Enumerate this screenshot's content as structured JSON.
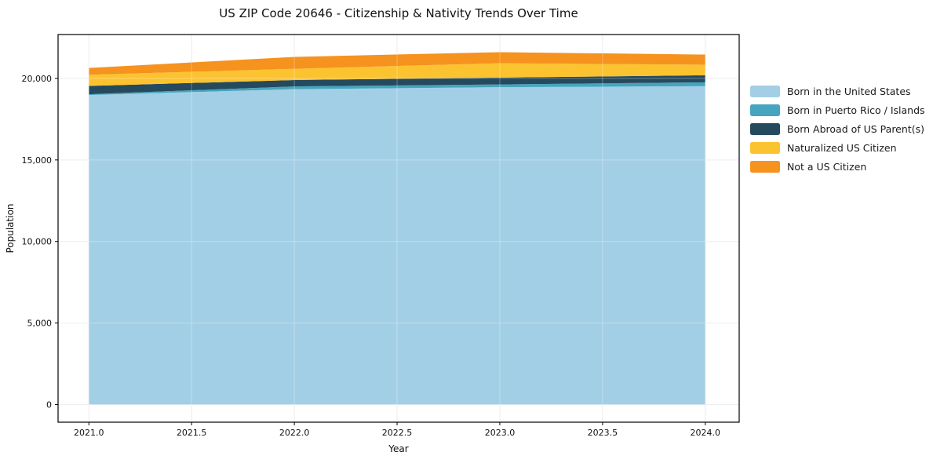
{
  "title": "US ZIP Code 20646 - Citizenship & Nativity Trends Over Time",
  "chart_data": {
    "type": "area",
    "stacked": true,
    "title": "US ZIP Code 20646 - Citizenship & Nativity Trends Over Time",
    "xlabel": "Year",
    "ylabel": "Population",
    "x": [
      2021,
      2022,
      2023,
      2024
    ],
    "series": [
      {
        "name": "Born in the United States",
        "color": "#a3cfe6",
        "values": [
          18980,
          19340,
          19460,
          19520
        ]
      },
      {
        "name": "Born in Puerto Rico / Islands",
        "color": "#45a5bf",
        "values": [
          50,
          170,
          170,
          240
        ]
      },
      {
        "name": "Born Abroad of US Parent(s)",
        "color": "#254a5d",
        "values": [
          510,
          390,
          420,
          430
        ]
      },
      {
        "name": "Naturalized US Citizen",
        "color": "#fcc330",
        "values": [
          680,
          690,
          880,
          650
        ]
      },
      {
        "name": "Not a US Citizen",
        "color": "#f6921e",
        "values": [
          420,
          730,
          680,
          620
        ]
      }
    ],
    "totals": [
      20640,
      21320,
      21610,
      21460
    ],
    "xticks": [
      2021.0,
      2021.5,
      2022.0,
      2022.5,
      2023.0,
      2023.5,
      2024.0
    ],
    "yticks": [
      0,
      5000,
      10000,
      15000,
      20000
    ],
    "xtick_labels": [
      "2021.0",
      "2021.5",
      "2022.0",
      "2022.5",
      "2023.0",
      "2023.5",
      "2024.0"
    ],
    "ytick_labels": [
      "0",
      "5,000",
      "10,000",
      "15,000",
      "20,000"
    ],
    "xlim": [
      2020.85,
      2024.165
    ],
    "ylim": [
      -1080,
      22690
    ],
    "grid": true,
    "legend_position": "right-outside",
    "colors": {
      "background": "#ffffff",
      "gridline": "#e7e7e7",
      "spine": "#000000",
      "tick_text": "#111111"
    }
  }
}
